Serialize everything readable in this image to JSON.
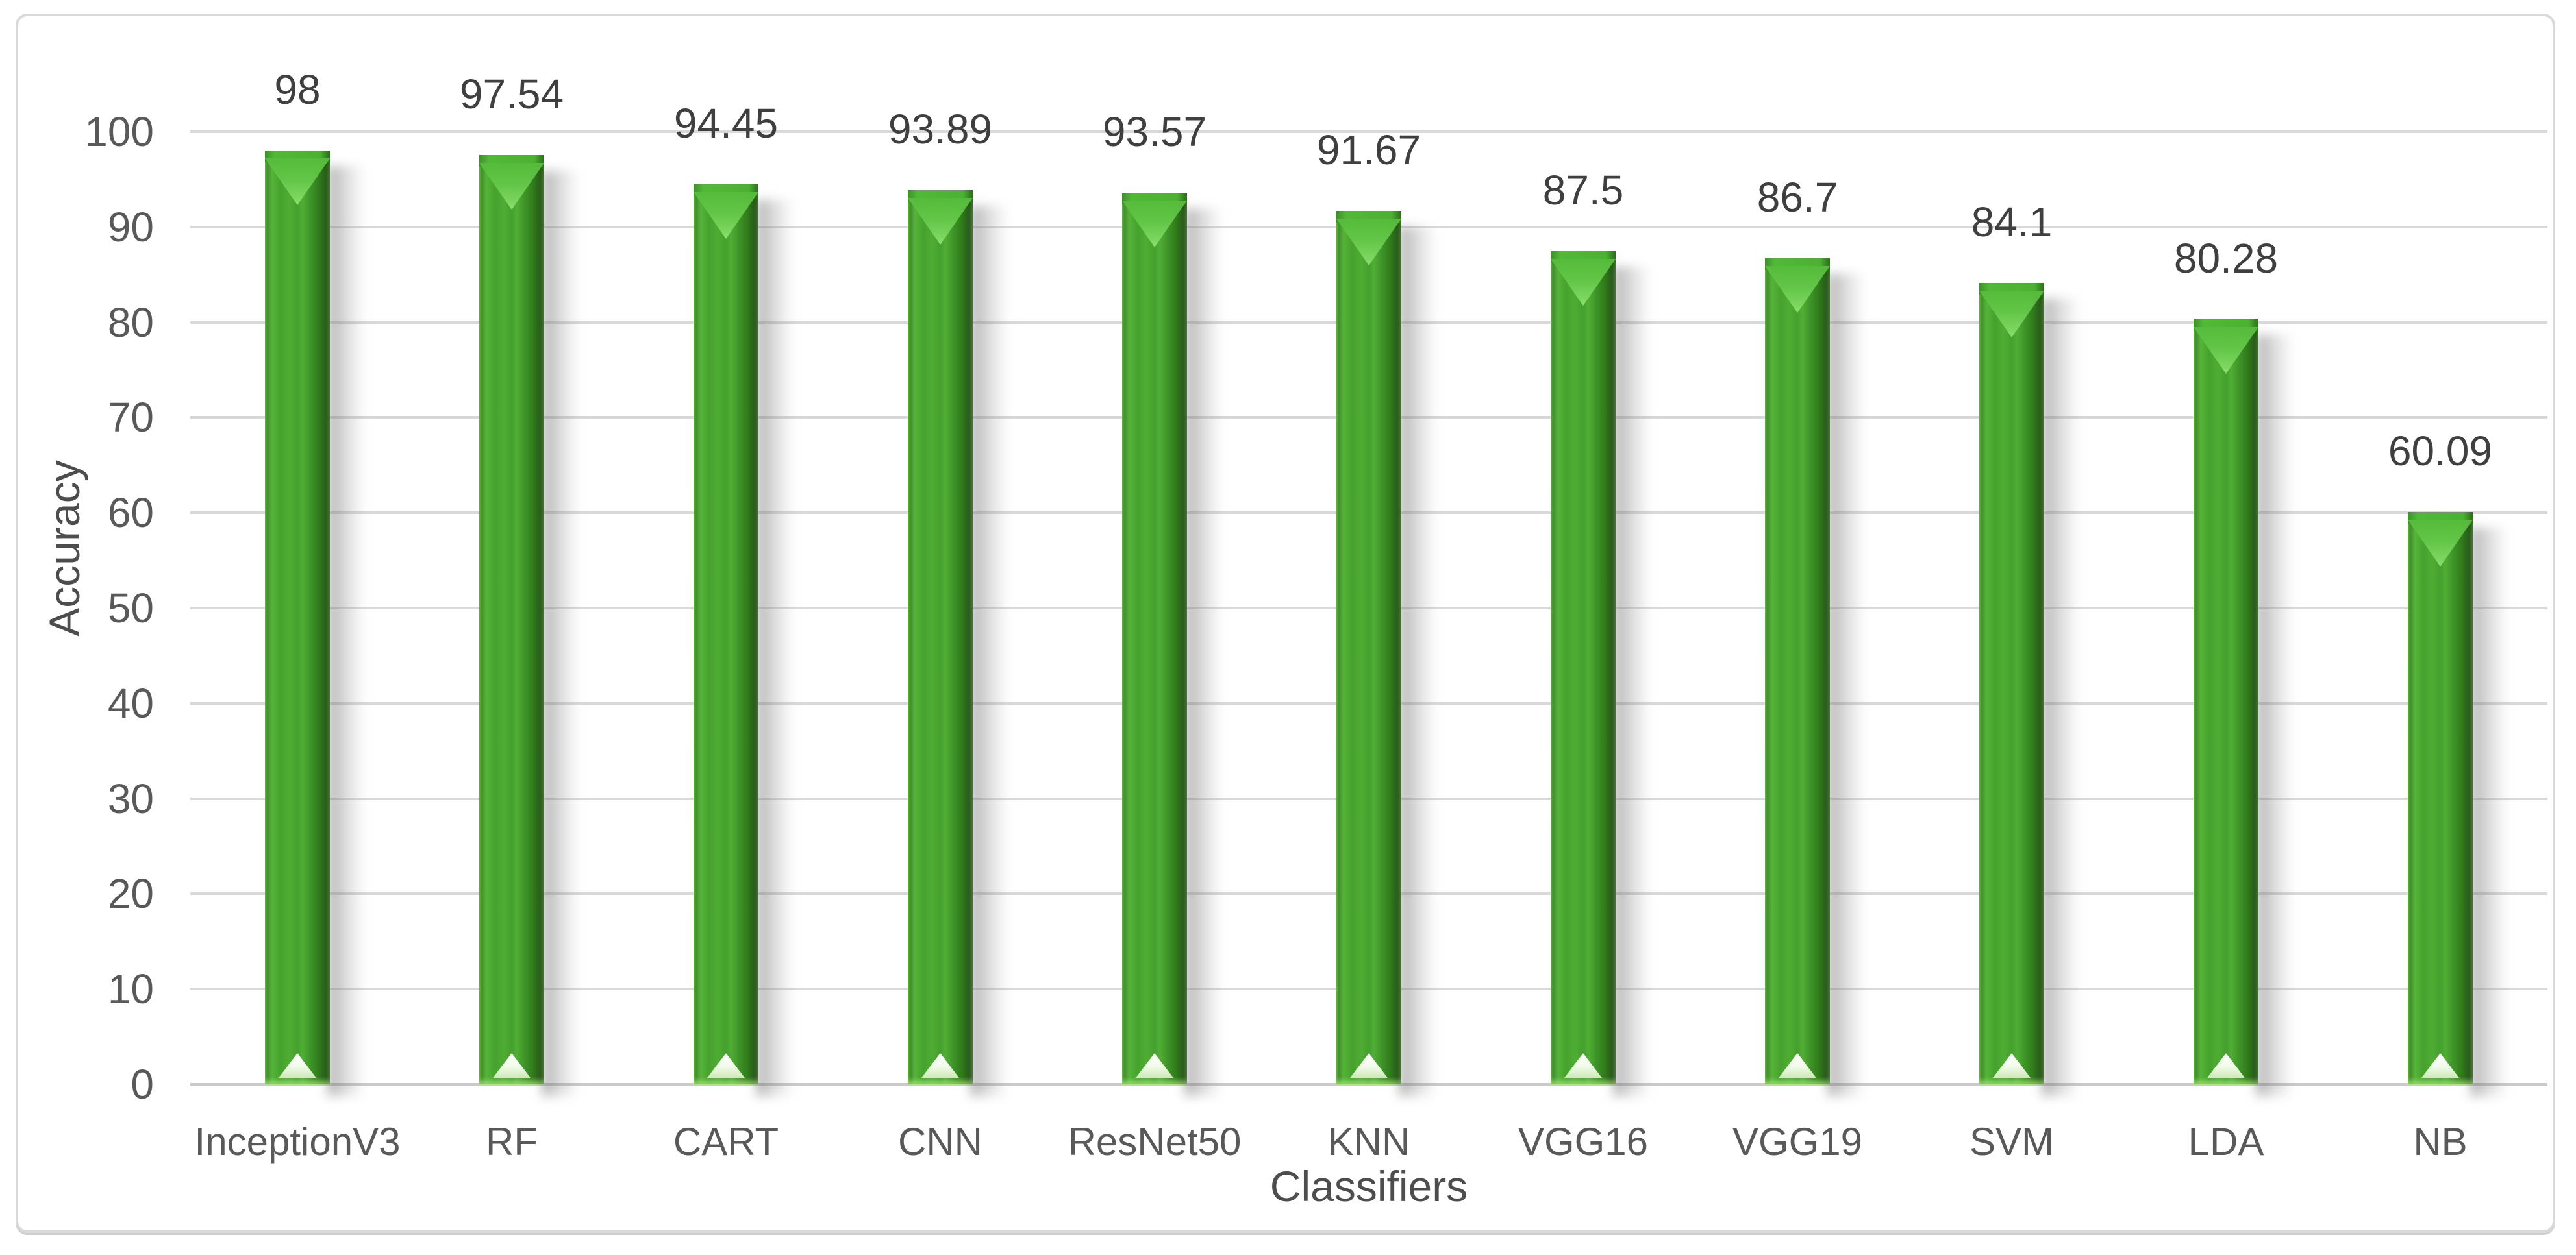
{
  "chart_data": {
    "type": "bar",
    "title": "",
    "xlabel": "Classifiers",
    "ylabel": "Accuracy",
    "categories": [
      "InceptionV3",
      "RF",
      "CART",
      "CNN",
      "ResNet50",
      "KNN",
      "VGG16",
      "VGG19",
      "SVM",
      "LDA",
      "NB"
    ],
    "values": [
      98,
      97.54,
      94.45,
      93.89,
      93.57,
      91.67,
      87.5,
      86.7,
      84.1,
      80.28,
      60.09
    ],
    "value_labels": [
      "98",
      "97.54",
      "94.45",
      "93.89",
      "93.57",
      "91.67",
      "87.5",
      "86.7",
      "84.1",
      "80.28",
      "60.09"
    ],
    "ylim": [
      0,
      100
    ],
    "yticks": [
      0,
      10,
      20,
      30,
      40,
      50,
      60,
      70,
      80,
      90,
      100
    ],
    "ytick_labels": [
      "0",
      "10",
      "20",
      "30",
      "40",
      "50",
      "60",
      "70",
      "80",
      "90",
      "100"
    ],
    "grid": true,
    "legend": "none",
    "bar_style": "3d-beveled-column",
    "colors": {
      "bar_main": "#46a22e",
      "bar_bright": "#55b438",
      "bar_edge_dark": "#1e5a0d",
      "bar_bevel_highlight": "#8ee272",
      "bar_base_triangle": "#ffffff",
      "shadow": "#9a9a9a",
      "gridline": "#d9d9d9",
      "axis_line": "#c9c9c9",
      "tick_text": "#595959",
      "category_text": "#595959",
      "value_text": "#3f3f3f",
      "axis_title_text": "#4d4d4d",
      "frame_border": "#d9d9d9",
      "background": "#ffffff"
    }
  }
}
